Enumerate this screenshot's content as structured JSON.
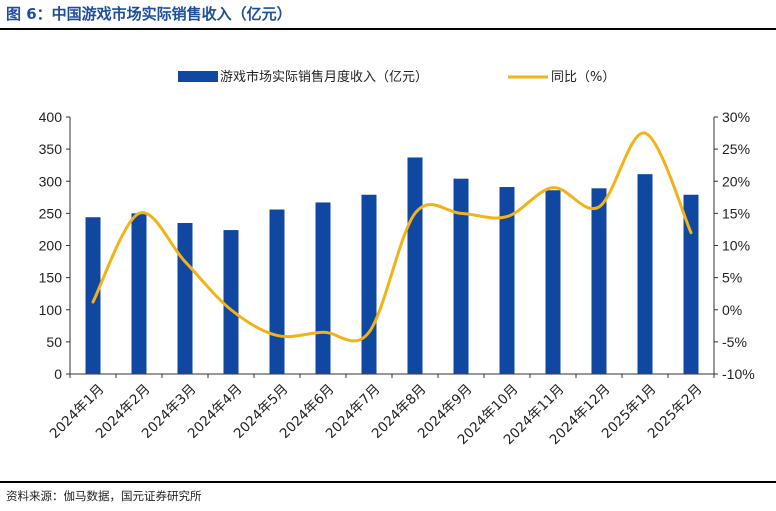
{
  "header": {
    "title": "图 6：中国游戏市场实际销售收入（亿元）"
  },
  "footer": {
    "source": "资料来源：伽马数据，国元证券研究所"
  },
  "colors": {
    "bar": "#0f47a1",
    "line": "#f2b318",
    "title": "#1f4e9b"
  },
  "chart_data": {
    "type": "bar",
    "categories": [
      "2024年1月",
      "2024年2月",
      "2024年3月",
      "2024年4月",
      "2024年5月",
      "2024年6月",
      "2024年7月",
      "2024年8月",
      "2024年9月",
      "2024年10月",
      "2024年11月",
      "2024年12月",
      "2025年1月",
      "2025年2月"
    ],
    "series": [
      {
        "name": "游戏市场实际销售月度收入（亿元）",
        "type": "bar",
        "axis": "left",
        "values": [
          244,
          250,
          235,
          224,
          256,
          267,
          279,
          337,
          304,
          291,
          286,
          289,
          311,
          279
        ]
      },
      {
        "name": "同比（%）",
        "type": "line",
        "axis": "right",
        "values": [
          1.2,
          15.0,
          7.5,
          0.0,
          -4.0,
          -3.5,
          -3.5,
          15.0,
          15.0,
          14.5,
          19.0,
          16.0,
          27.5,
          12.0
        ]
      }
    ],
    "y_left": {
      "ylim": [
        0,
        400
      ],
      "ticks": [
        "0",
        "50",
        "100",
        "150",
        "200",
        "250",
        "300",
        "350",
        "400"
      ]
    },
    "y_right": {
      "ylim": [
        -10,
        30
      ],
      "ticks": [
        "-10%",
        "-5%",
        "0%",
        "5%",
        "10%",
        "15%",
        "20%",
        "25%",
        "30%"
      ]
    },
    "legend": "top-center",
    "grid": false
  }
}
